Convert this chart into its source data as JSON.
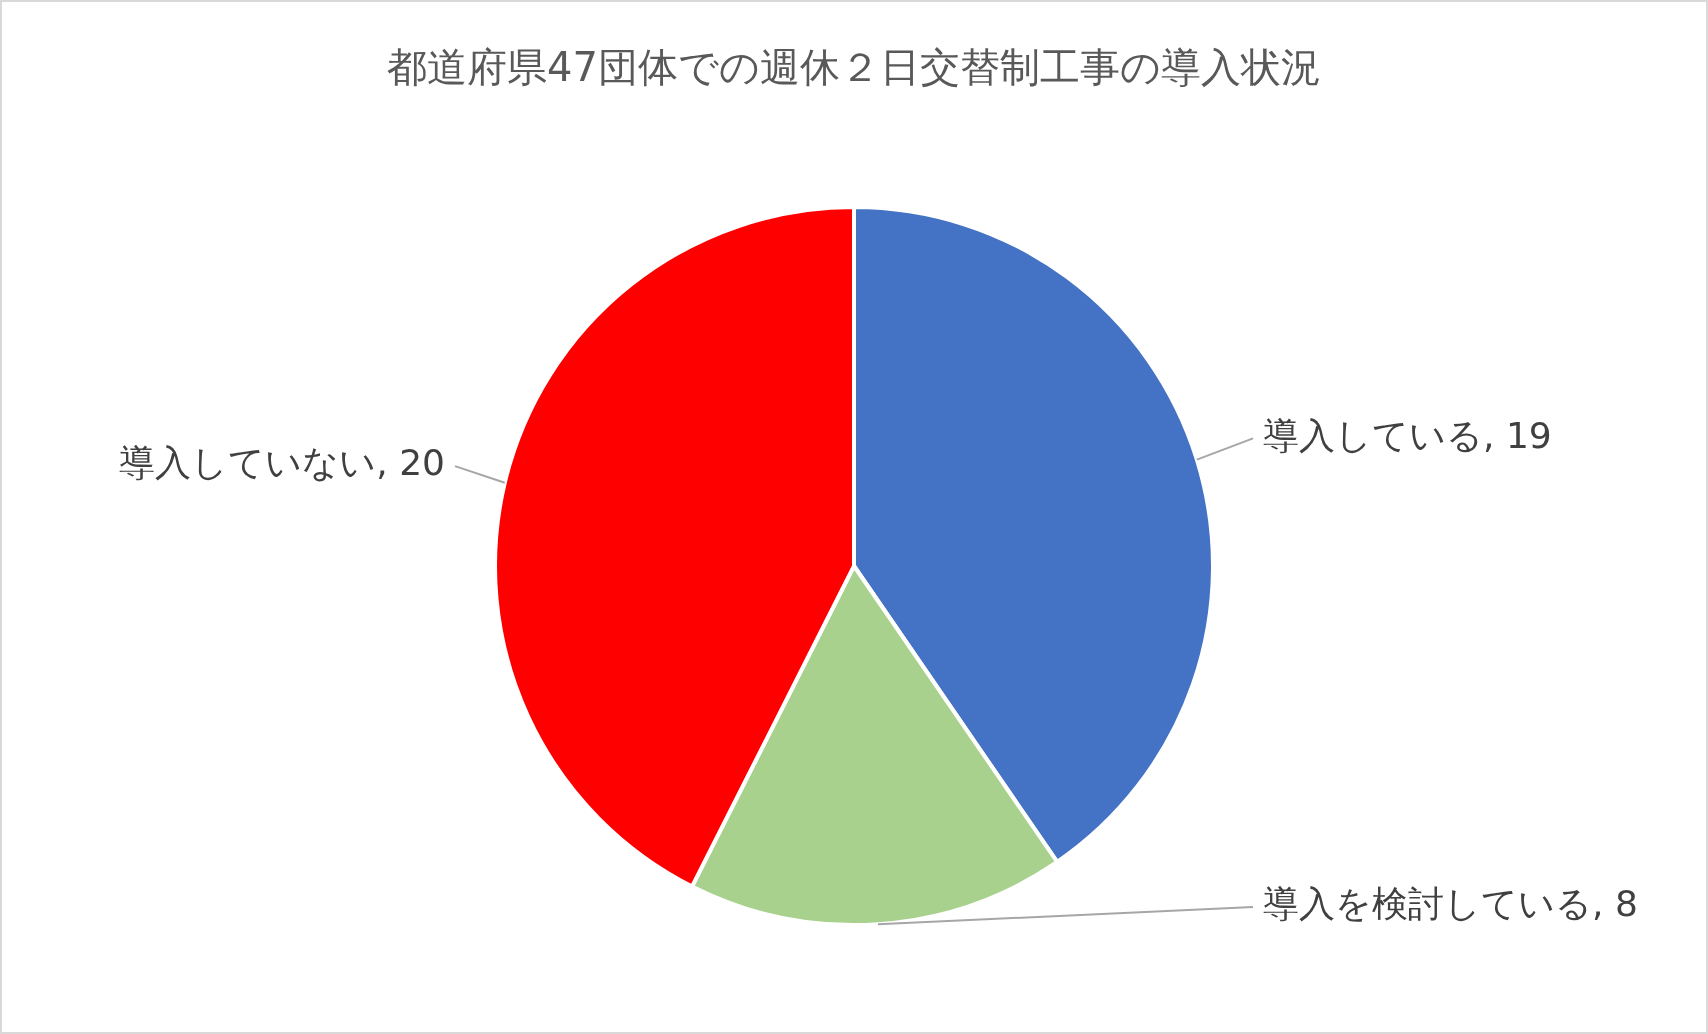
{
  "chart_data": {
    "type": "pie",
    "title": "都道府県47団体での週休２日交替制工事の導入状況",
    "categories": [
      "導入している",
      "導入を検討している",
      "導入していない"
    ],
    "values": [
      19,
      8,
      20
    ],
    "value_labels": [
      ", 19",
      ", 8",
      ", 20"
    ],
    "colors": [
      "#4472c4",
      "#a9d18e",
      "#ff0000"
    ],
    "legend": false
  }
}
